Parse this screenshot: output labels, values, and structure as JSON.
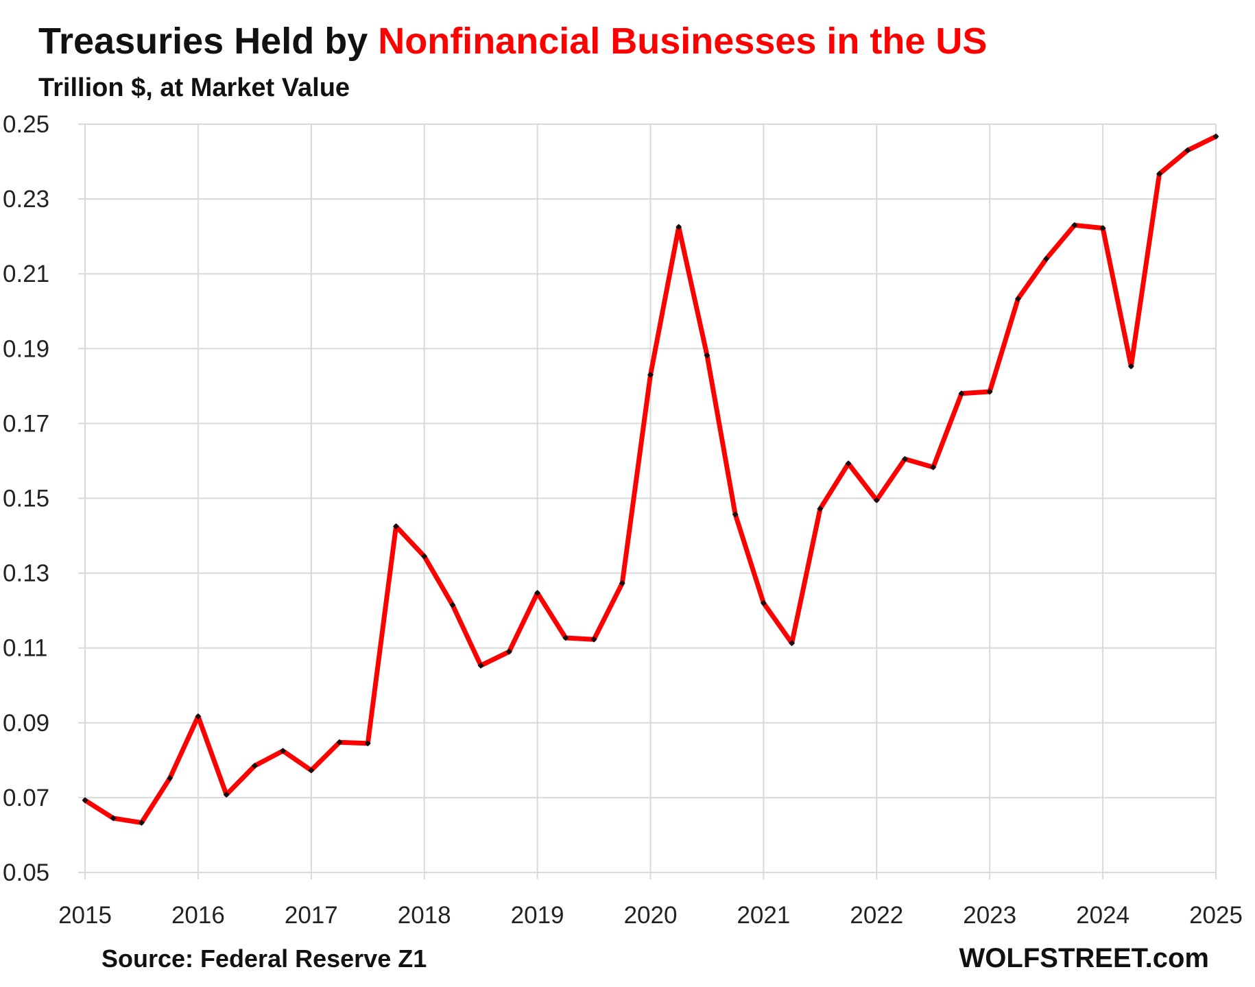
{
  "chart_data": {
    "type": "line",
    "title_part1": "Treasuries Held by ",
    "title_part2": "Nonfinancial Businesses in the US",
    "subtitle": "Trillion $, at Market Value",
    "source": "Source: Federal Reserve Z1",
    "brand": "WOLFSTREET.com",
    "colors": {
      "title_main": "#111111",
      "title_highlight": "#ff0000",
      "line": "#ff0000",
      "marker": "#111111",
      "grid": "#d9d9d9"
    },
    "grid": true,
    "xlim": [
      2015,
      2025
    ],
    "ylim": [
      0.05,
      0.25
    ],
    "x_ticks": [
      "2015",
      "2016",
      "2017",
      "2018",
      "2019",
      "2020",
      "2021",
      "2022",
      "2023",
      "2024",
      "2025"
    ],
    "y_ticks": [
      "0.05",
      "0.07",
      "0.09",
      "0.11",
      "0.13",
      "0.15",
      "0.17",
      "0.19",
      "0.21",
      "0.23",
      "0.25"
    ],
    "series": [
      {
        "x": [
          2015.0,
          2015.25,
          2015.5,
          2015.75,
          2016.0,
          2016.25,
          2016.5,
          2016.75,
          2017.0,
          2017.25,
          2017.5,
          2017.75,
          2018.0,
          2018.25,
          2018.5,
          2018.75,
          2019.0,
          2019.25,
          2019.5,
          2019.75,
          2020.0,
          2020.25,
          2020.5,
          2020.75,
          2021.0,
          2021.25,
          2021.5,
          2021.75,
          2022.0,
          2022.25,
          2022.5,
          2022.75,
          2023.0,
          2023.25,
          2023.5,
          2023.75,
          2024.0,
          2024.25,
          2024.5,
          2024.75,
          2025.0
        ],
        "values": [
          0.0693,
          0.0645,
          0.0633,
          0.0752,
          0.0917,
          0.0708,
          0.0785,
          0.0825,
          0.0773,
          0.0848,
          0.0845,
          0.1425,
          0.1345,
          0.1215,
          0.1053,
          0.109,
          0.1247,
          0.1127,
          0.1123,
          0.1273,
          0.183,
          0.2225,
          0.1882,
          0.1457,
          0.122,
          0.1113,
          0.1472,
          0.1593,
          0.1495,
          0.1605,
          0.1583,
          0.178,
          0.1785,
          0.2033,
          0.214,
          0.223,
          0.2222,
          0.1853,
          0.2367,
          0.243,
          0.2467
        ]
      }
    ]
  }
}
